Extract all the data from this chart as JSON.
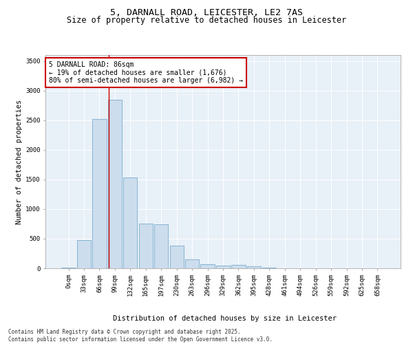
{
  "title_line1": "5, DARNALL ROAD, LEICESTER, LE2 7AS",
  "title_line2": "Size of property relative to detached houses in Leicester",
  "xlabel": "Distribution of detached houses by size in Leicester",
  "ylabel": "Number of detached properties",
  "bar_color": "#ccdded",
  "bar_edge_color": "#7aacce",
  "vline_color": "#cc0000",
  "vline_position": 2.62,
  "annotation_box_text": "5 DARNALL ROAD: 86sqm\n← 19% of detached houses are smaller (1,676)\n80% of semi-detached houses are larger (6,982) →",
  "annotation_box_color": "#cc0000",
  "categories": [
    "0sqm",
    "33sqm",
    "66sqm",
    "99sqm",
    "132sqm",
    "165sqm",
    "197sqm",
    "230sqm",
    "263sqm",
    "296sqm",
    "329sqm",
    "362sqm",
    "395sqm",
    "428sqm",
    "461sqm",
    "494sqm",
    "526sqm",
    "559sqm",
    "592sqm",
    "625sqm",
    "658sqm"
  ],
  "values": [
    8,
    480,
    2520,
    2840,
    1530,
    750,
    740,
    380,
    155,
    70,
    50,
    55,
    38,
    8,
    4,
    2,
    1,
    1,
    0,
    0,
    0
  ],
  "ylim": [
    0,
    3600
  ],
  "yticks": [
    0,
    500,
    1000,
    1500,
    2000,
    2500,
    3000,
    3500
  ],
  "background_color": "#e8f0f8",
  "footer_line1": "Contains HM Land Registry data © Crown copyright and database right 2025.",
  "footer_line2": "Contains public sector information licensed under the Open Government Licence v3.0.",
  "title_fontsize": 9.5,
  "subtitle_fontsize": 8.5,
  "tick_fontsize": 6.5,
  "label_fontsize": 7.5,
  "annot_fontsize": 7,
  "footer_fontsize": 5.5
}
